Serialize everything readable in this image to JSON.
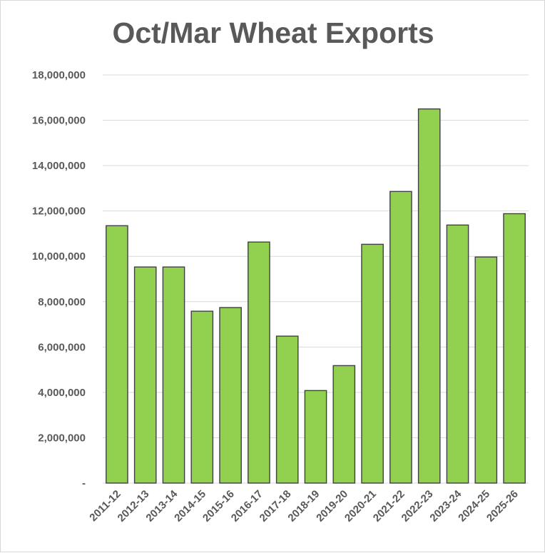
{
  "chart_data": {
    "type": "bar",
    "title": "Oct/Mar Wheat Exports",
    "xlabel": "",
    "ylabel": "",
    "ylim": [
      0,
      18000000
    ],
    "yticks": [
      0,
      2000000,
      4000000,
      6000000,
      8000000,
      10000000,
      12000000,
      14000000,
      16000000,
      18000000
    ],
    "ytick_labels": [
      "-",
      "2,000,000",
      "4,000,000",
      "6,000,000",
      "8,000,000",
      "10,000,000",
      "12,000,000",
      "14,000,000",
      "16,000,000",
      "18,000,000"
    ],
    "categories": [
      "2011-12",
      "2012-13",
      "2013-14",
      "2014-15",
      "2015-16",
      "2016-17",
      "2017-18",
      "2018-19",
      "2019-20",
      "2020-21",
      "2021-22",
      "2022-23",
      "2023-24",
      "2024-25",
      "2025-26"
    ],
    "values": [
      11350000,
      9530000,
      9530000,
      7580000,
      7740000,
      10630000,
      6480000,
      4080000,
      5180000,
      10530000,
      12860000,
      16500000,
      11380000,
      9970000,
      11880000
    ],
    "grid": true,
    "legend": "none",
    "colors": {
      "bar": "#92d050",
      "bar_outline": "#404040",
      "grid": "#d9d9d9",
      "text": "#595959"
    }
  }
}
